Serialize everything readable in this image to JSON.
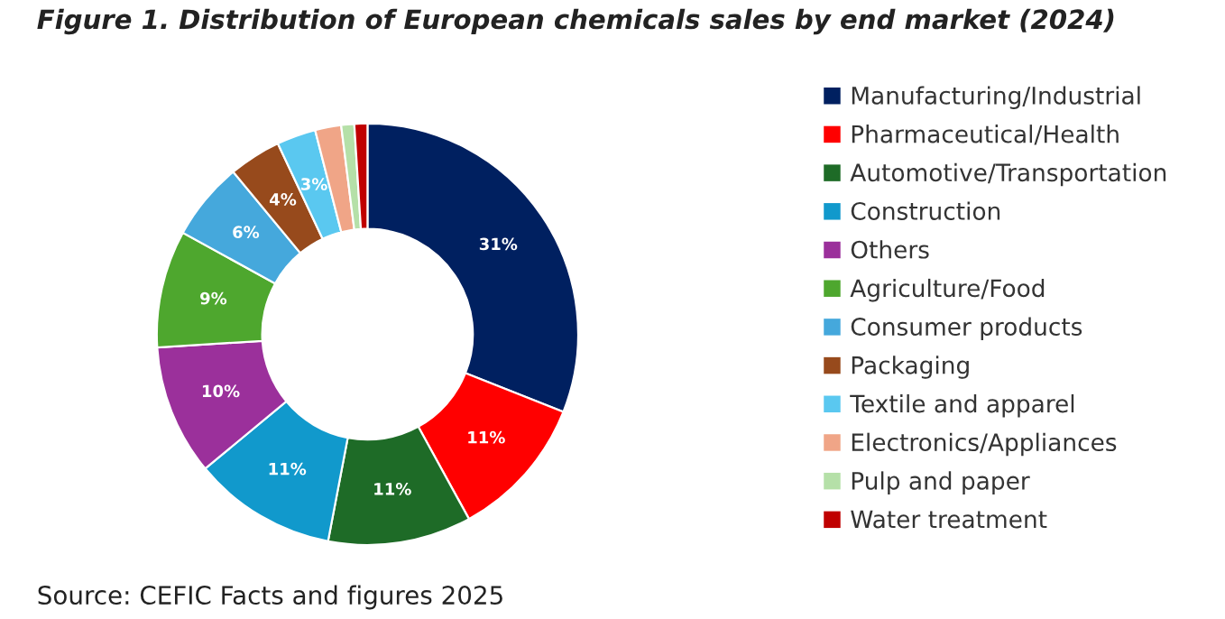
{
  "chart_data": {
    "type": "donut",
    "title": "Figure 1. Distribution of European chemicals sales by end market (2024)",
    "categories": [
      "Manufacturing/Industrial",
      "Pharmaceutical/Health",
      "Automotive/Transportation",
      "Construction",
      "Others",
      "Agriculture/Food",
      "Consumer products",
      "Packaging",
      "Textile and apparel",
      "Electronics/Appliances",
      "Pulp and paper",
      "Water treatment"
    ],
    "values": [
      31,
      11,
      11,
      11,
      10,
      9,
      6,
      4,
      3,
      2,
      1,
      1
    ],
    "value_labels": [
      "31%",
      "11%",
      "11%",
      "11%",
      "10%",
      "9%",
      "6%",
      "4%",
      "3%",
      null,
      null,
      null
    ],
    "colors": [
      "#002060",
      "#ff0000",
      "#1e6b27",
      "#1199cc",
      "#9b309b",
      "#4ea72e",
      "#45a8dc",
      "#974a1c",
      "#5ac8f0",
      "#f0a587",
      "#b5e0a8",
      "#c00000"
    ],
    "legend": "right",
    "annotations": [
      "Source: CEFIC Facts and figures 2025"
    ]
  }
}
